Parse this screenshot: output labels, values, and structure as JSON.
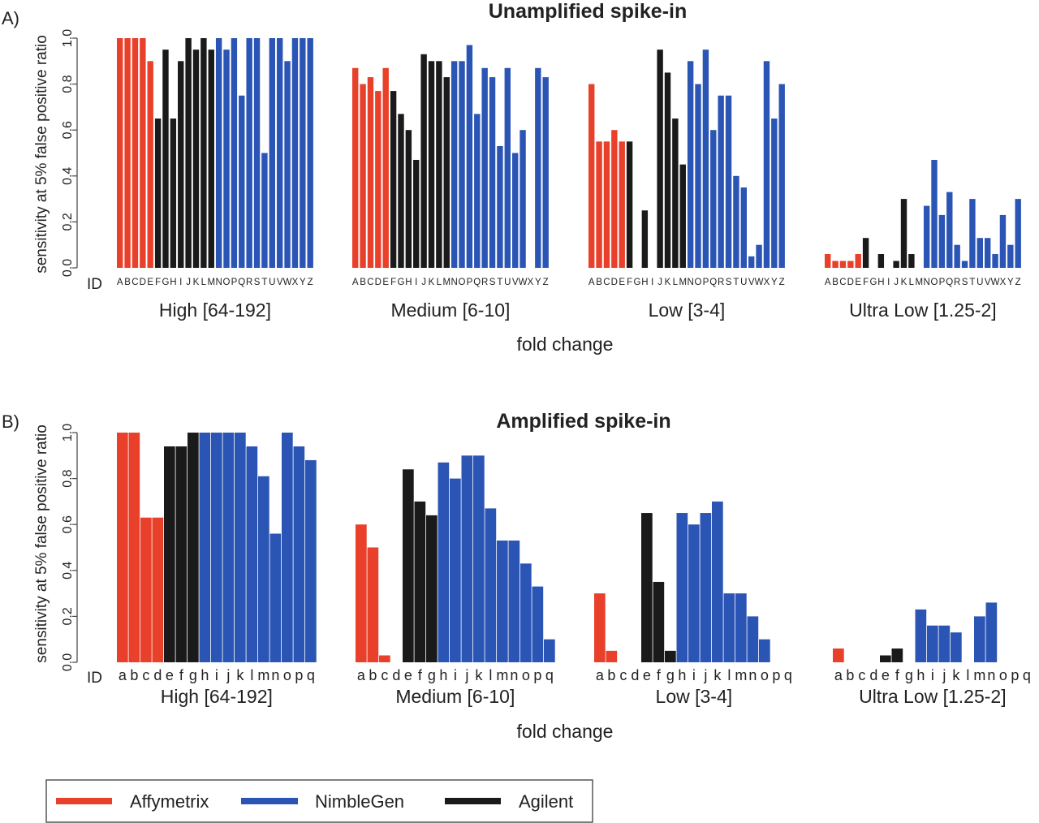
{
  "colors": {
    "Affymetrix": "#e8402a",
    "NimbleGen": "#2b55b5",
    "Agilent": "#1a1a1a",
    "axis": "#444444"
  },
  "chart_data": [
    {
      "type": "bar",
      "panel_label": "A)",
      "title": "Unamplified spike-in",
      "ylabel": "sensitivity at 5% false positive ratio",
      "xlabel": "fold change",
      "id_label": "ID",
      "ylim": [
        0,
        1
      ],
      "yticks": [
        "0.0",
        "0.2",
        "0.4",
        "0.6",
        "0.8",
        "1.0"
      ],
      "categories": [
        "A",
        "B",
        "C",
        "D",
        "E",
        "F",
        "G",
        "H",
        "I",
        "J",
        "K",
        "L",
        "M",
        "N",
        "O",
        "P",
        "Q",
        "R",
        "S",
        "T",
        "U",
        "V",
        "W",
        "X",
        "Y",
        "Z"
      ],
      "platform_by_category": [
        "Affymetrix",
        "Affymetrix",
        "Affymetrix",
        "Affymetrix",
        "Affymetrix",
        "Agilent",
        "Agilent",
        "Agilent",
        "Agilent",
        "Agilent",
        "Agilent",
        "Agilent",
        "Agilent",
        "NimbleGen",
        "NimbleGen",
        "NimbleGen",
        "NimbleGen",
        "NimbleGen",
        "NimbleGen",
        "NimbleGen",
        "NimbleGen",
        "NimbleGen",
        "NimbleGen",
        "NimbleGen",
        "NimbleGen",
        "NimbleGen"
      ],
      "groups": [
        {
          "name": "High [64-192]",
          "values": [
            1.0,
            1.0,
            1.0,
            1.0,
            0.9,
            0.65,
            0.95,
            0.65,
            0.9,
            1.0,
            0.95,
            1.0,
            0.95,
            1.0,
            0.95,
            1.0,
            0.75,
            1.0,
            1.0,
            0.5,
            1.0,
            1.0,
            0.9,
            1.0,
            1.0,
            1.0
          ]
        },
        {
          "name": "Medium [6-10]",
          "values": [
            0.87,
            0.8,
            0.83,
            0.77,
            0.87,
            0.77,
            0.67,
            0.6,
            0.47,
            0.93,
            0.9,
            0.9,
            0.83,
            0.9,
            0.9,
            0.97,
            0.67,
            0.87,
            0.83,
            0.53,
            0.87,
            0.5,
            0.6,
            0,
            0.87,
            0.83
          ]
        },
        {
          "name": "Low [3-4]",
          "values": [
            0.8,
            0.55,
            0.55,
            0.6,
            0.55,
            0.55,
            0,
            0.25,
            0,
            0.95,
            0.85,
            0.65,
            0.45,
            0.9,
            0.8,
            0.95,
            0.6,
            0.75,
            0.75,
            0.4,
            0.35,
            0.05,
            0.1,
            0.9,
            0.65,
            0.8
          ]
        },
        {
          "name": "Ultra Low [1.25-2]",
          "values": [
            0.06,
            0.03,
            0.03,
            0.03,
            0.06,
            0.13,
            0,
            0.06,
            0,
            0.03,
            0.3,
            0.06,
            0,
            0.27,
            0.47,
            0.23,
            0.33,
            0.1,
            0.03,
            0.3,
            0.13,
            0.13,
            0.06,
            0.23,
            0.1,
            0.3
          ]
        }
      ]
    },
    {
      "type": "bar",
      "panel_label": "B)",
      "title": "Amplified spike-in",
      "ylabel": "sensitivity at 5% false positive ratio",
      "xlabel": "fold change",
      "id_label": "ID",
      "ylim": [
        0,
        1
      ],
      "yticks": [
        "0.0",
        "0.2",
        "0.4",
        "0.6",
        "0.8",
        "1.0"
      ],
      "categories": [
        "a",
        "b",
        "c",
        "d",
        "e",
        "f",
        "g",
        "h",
        "i",
        "j",
        "k",
        "l",
        "m",
        "n",
        "o",
        "p",
        "q"
      ],
      "platform_by_category": [
        "Affymetrix",
        "Affymetrix",
        "Affymetrix",
        "Affymetrix",
        "Agilent",
        "Agilent",
        "Agilent",
        "NimbleGen",
        "NimbleGen",
        "NimbleGen",
        "NimbleGen",
        "NimbleGen",
        "NimbleGen",
        "NimbleGen",
        "NimbleGen",
        "NimbleGen",
        "NimbleGen"
      ],
      "groups": [
        {
          "name": "High [64-192]",
          "values": [
            1.0,
            1.0,
            0.63,
            0.63,
            0.94,
            0.94,
            1.0,
            1.0,
            1.0,
            1.0,
            1.0,
            0.94,
            0.81,
            0.56,
            1.0,
            0.94,
            0.88
          ]
        },
        {
          "name": "Medium [6-10]",
          "values": [
            0.6,
            0.5,
            0.03,
            0,
            0.84,
            0.7,
            0.64,
            0.87,
            0.8,
            0.9,
            0.9,
            0.67,
            0.53,
            0.53,
            0.43,
            0.33,
            0.1
          ]
        },
        {
          "name": "Low [3-4]",
          "values": [
            0.3,
            0.05,
            0,
            0,
            0.65,
            0.35,
            0.05,
            0.65,
            0.6,
            0.65,
            0.7,
            0.3,
            0.3,
            0.2,
            0.1,
            0,
            0
          ]
        },
        {
          "name": "Ultra Low [1.25-2]",
          "values": [
            0.06,
            0,
            0,
            0,
            0.03,
            0.06,
            0,
            0.23,
            0.16,
            0.16,
            0.13,
            0,
            0.2,
            0.26,
            0,
            0,
            0
          ]
        }
      ]
    }
  ],
  "legend": {
    "items": [
      {
        "label": "Affymetrix",
        "color_key": "Affymetrix"
      },
      {
        "label": "NimbleGen",
        "color_key": "NimbleGen"
      },
      {
        "label": "Agilent",
        "color_key": "Agilent"
      }
    ]
  }
}
